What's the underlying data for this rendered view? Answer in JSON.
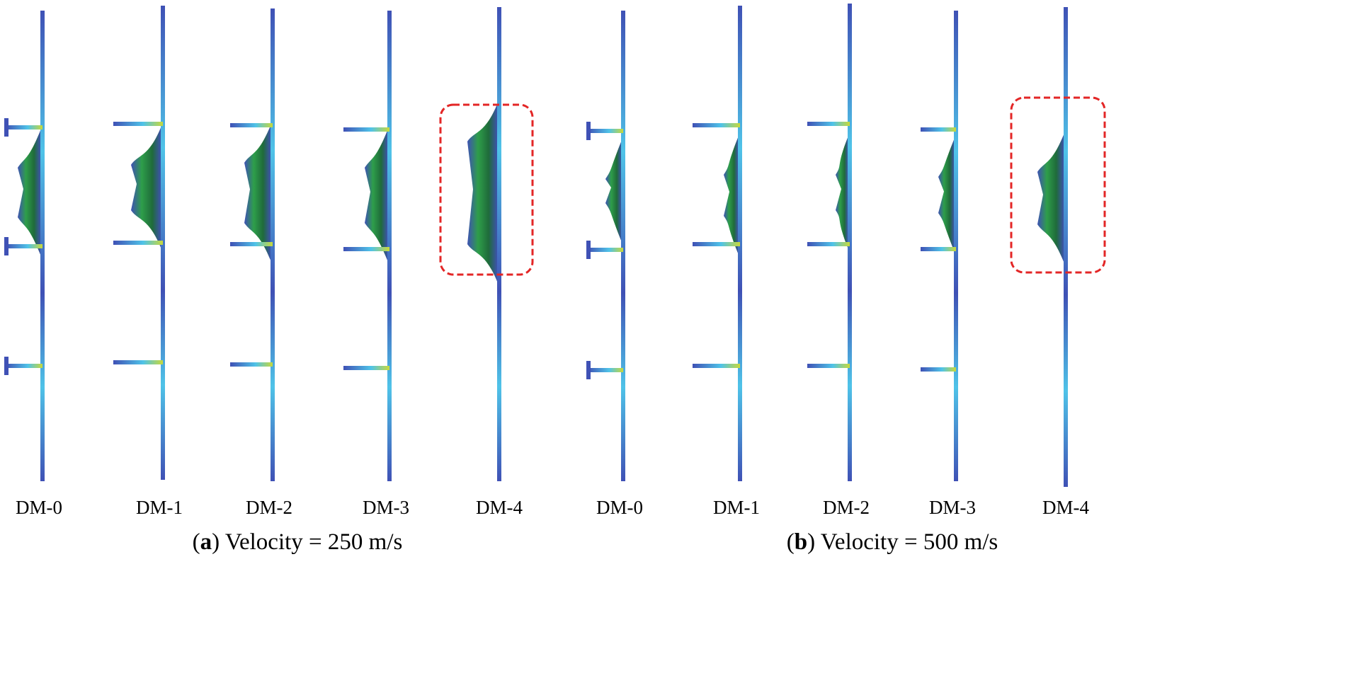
{
  "panels": [
    {
      "id": "a",
      "caption_letter": "a",
      "caption_text": ") Velocity = 250 m/s",
      "models": [
        {
          "label": "DM-0"
        },
        {
          "label": "DM-1"
        },
        {
          "label": "DM-2"
        },
        {
          "label": "DM-3"
        },
        {
          "label": "DM-4"
        }
      ]
    },
    {
      "id": "b",
      "caption_letter": "b",
      "caption_text": ") Velocity = 500 m/s",
      "models": [
        {
          "label": "DM-0"
        },
        {
          "label": "DM-1"
        },
        {
          "label": "DM-2"
        },
        {
          "label": "DM-3"
        },
        {
          "label": "DM-4"
        }
      ]
    }
  ],
  "colors": {
    "plate": "#3f51b5",
    "cyan": "#4fc3e8",
    "green": "#2e9e4a",
    "yellow": "#c8d93a",
    "red": "#e0302a",
    "highlight": "#e32626"
  }
}
